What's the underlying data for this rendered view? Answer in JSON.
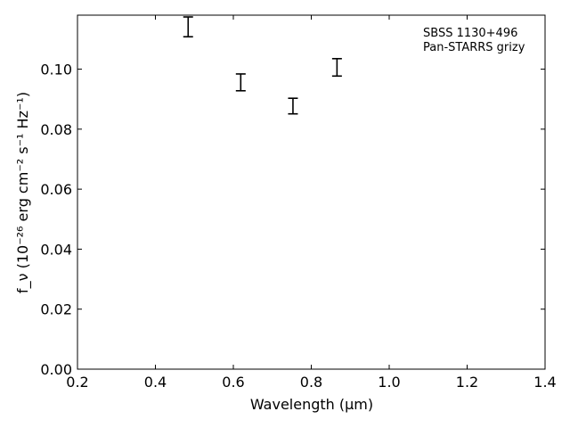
{
  "chart_data": {
    "type": "scatter",
    "xlabel": "Wavelength (μm)",
    "ylabel": "f_ν (10⁻²⁶ erg cm⁻² s⁻¹ Hz⁻¹)",
    "xlim": [
      0.2,
      1.4
    ],
    "ylim": [
      0.0,
      0.118
    ],
    "xticks": [
      "0.2",
      "0.4",
      "0.6",
      "0.8",
      "1.0",
      "1.2",
      "1.4"
    ],
    "yticks": [
      "0.00",
      "0.02",
      "0.04",
      "0.06",
      "0.08",
      "0.10"
    ],
    "grid": false,
    "annotations": [
      "SBSS 1130+496",
      "Pan-STARRS grizy"
    ],
    "annotation_position": "top-right",
    "series": [
      {
        "marker": "errorbar",
        "color": "#000000",
        "points": [
          {
            "x": 0.484,
            "y": 0.1141,
            "yerr": 0.0033
          },
          {
            "x": 0.619,
            "y": 0.0956,
            "yerr": 0.0028
          },
          {
            "x": 0.753,
            "y": 0.0877,
            "yerr": 0.0026
          },
          {
            "x": 0.866,
            "y": 0.1006,
            "yerr": 0.0029
          }
        ]
      }
    ]
  }
}
